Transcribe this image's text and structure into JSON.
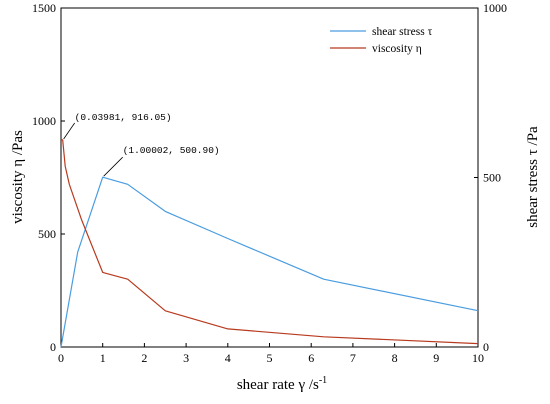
{
  "chart_data": {
    "type": "line",
    "xlabel": "shear rate γ /s",
    "xlabel_superscript": "-1",
    "ylabel_left": "viscosity η /Pas",
    "ylabel_right": "shear stress τ /Pa",
    "xlim": [
      0,
      10
    ],
    "ylim_left": [
      0,
      1500
    ],
    "ylim_right": [
      0,
      1000
    ],
    "x_ticks": [
      "0",
      "1",
      "2",
      "3",
      "4",
      "5",
      "6",
      "7",
      "8",
      "9",
      "10"
    ],
    "y_left_ticks": [
      "0",
      "500",
      "1000",
      "1500"
    ],
    "y_right_ticks": [
      "0",
      "500",
      "1000"
    ],
    "grid": false,
    "legend_position": "top-right",
    "series": [
      {
        "name": "shear stress τ",
        "axis": "right",
        "color": "#4a9de0",
        "x": [
          0.0,
          0.4,
          1.00002,
          1.6,
          2.5,
          4.0,
          6.3,
          10.0
        ],
        "y": [
          0,
          280,
          500.9,
          480,
          400,
          320,
          200,
          107
        ]
      },
      {
        "name": "viscosity η",
        "axis": "left",
        "color": "#b83a1e",
        "x": [
          0.0,
          0.03981,
          0.1,
          0.2,
          0.5,
          1.0,
          1.6,
          2.5,
          4.0,
          6.3,
          10.0
        ],
        "y": [
          920,
          916.05,
          800,
          720,
          560,
          330,
          300,
          160,
          80,
          45,
          15
        ]
      }
    ],
    "annotations": [
      {
        "text": "(0.03981, 916.05)",
        "x": 0.03981,
        "y": 916.05,
        "axis": "left"
      },
      {
        "text": "(1.00002, 500.90)",
        "x": 1.00002,
        "y": 500.9,
        "axis": "right"
      }
    ]
  }
}
